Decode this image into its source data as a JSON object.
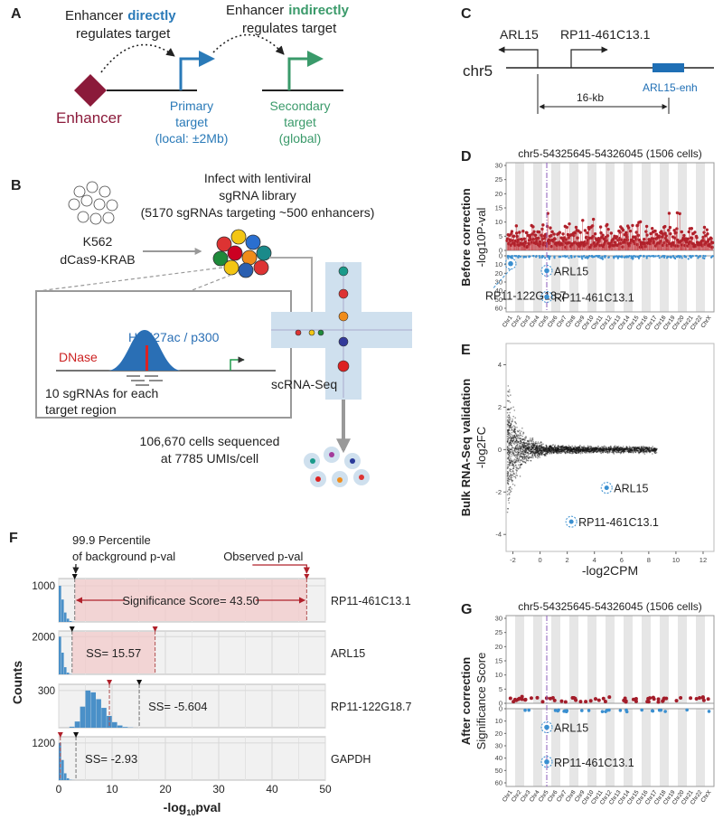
{
  "A": {
    "label": "A",
    "direct": [
      "Enhancer",
      "directly",
      "regulates target"
    ],
    "indirect": [
      "Enhancer",
      "indirectly",
      "regulates target"
    ],
    "enhancer": "Enhancer",
    "primary": [
      "Primary",
      "target",
      "(local: ±2Mb)"
    ],
    "secondary": [
      "Secondary",
      "target",
      "(global)"
    ]
  },
  "B": {
    "label": "B",
    "cell_line": [
      "K562",
      "dCas9-KRAB"
    ],
    "library": [
      "Infect with lentiviral",
      "sgRNA library",
      "(5170  sgRNAs targeting ~500 enhancers)"
    ],
    "dnase": "DNase",
    "marks": "H3K27ac / p300",
    "sgrnas": [
      "10 sgRNAs for each",
      "target region"
    ],
    "method": "scRNA-Seq",
    "result": [
      "106,670 cells sequenced",
      "at 7785 UMIs/cell"
    ]
  },
  "C": {
    "label": "C",
    "chrom": "chr5",
    "genes": [
      "ARL15",
      "RP11-461C13.1"
    ],
    "enhancer": "ARL15-enh",
    "distance": "16-kb"
  },
  "D": {
    "label": "D",
    "type": "manhattan",
    "title": "chr5-54325645-54326045 (1506 cells)",
    "ylabel": [
      "Before correction",
      "-log10P-val"
    ],
    "ylim_up": [
      0,
      30
    ],
    "yticks_up": [
      0,
      5,
      10,
      15,
      20,
      25,
      30
    ],
    "ylim_down": [
      0,
      60
    ],
    "yticks_down": [
      0,
      10,
      20,
      30,
      40,
      50,
      60
    ],
    "chromosomes": [
      "Chr1",
      "Chr2",
      "Chr3",
      "Chr4",
      "Chr5",
      "Chr6",
      "Chr7",
      "Chr8",
      "Chr9",
      "Chr10",
      "Chr11",
      "Chr12",
      "Chr13",
      "Chr14",
      "Chr15",
      "Chr16",
      "Chr17",
      "Chr18",
      "Chr19",
      "Chr20",
      "Chr21",
      "Chr22",
      "ChrX"
    ],
    "target_chromosome": "Chr5",
    "points": [
      {
        "name": "ARL15",
        "chromosome": "Chr5",
        "value": 17
      },
      {
        "name": "RP11-122G18.7",
        "chromosome": "Chr1",
        "value": 9
      },
      {
        "name": "RP11-461C13.1",
        "chromosome": "Chr5",
        "value": 47
      }
    ]
  },
  "E": {
    "label": "E",
    "type": "scatter",
    "xlabel": "-log2CPM",
    "ylabel": [
      "Bulk RNA-Seq validation",
      "-log2FC"
    ],
    "xlim": [
      -2.5,
      12.8
    ],
    "xticks": [
      -2,
      0,
      2,
      4,
      6,
      8,
      10,
      12
    ],
    "ylim": [
      -4.8,
      5
    ],
    "yticks": [
      -4,
      -2,
      0,
      2,
      4
    ],
    "points": [
      {
        "name": "ARL15",
        "x": 4.9,
        "y": -1.8
      },
      {
        "name": "RP11-461C13.1",
        "x": 2.3,
        "y": -3.4
      }
    ]
  },
  "F": {
    "label": "F",
    "type": "histogram",
    "ylabel": "Counts",
    "xlabel": [
      "-log",
      "10",
      "pval"
    ],
    "xlim": [
      0,
      50
    ],
    "xticks": [
      0,
      10,
      20,
      30,
      40,
      50
    ],
    "threshold_note": [
      "99.9 Percentile",
      "of background p-val"
    ],
    "observed_note": "Observed p-val",
    "rows": [
      {
        "gene": "RP11-461C13.1",
        "ylim": [
          0,
          1200
        ],
        "yticks": [
          1000
        ],
        "bins": [
          0,
          0.5,
          1,
          1.5,
          2,
          2.5,
          3
        ],
        "counts": [
          1000,
          620,
          260,
          90,
          25,
          6
        ],
        "threshold": 3,
        "observed": 46.5,
        "shaded": true,
        "ss_label": "Significance Score= 43.50"
      },
      {
        "gene": "ARL15",
        "ylim": [
          0,
          2300
        ],
        "yticks": [
          2000
        ],
        "bins": [
          0,
          0.5,
          1,
          1.5,
          2,
          2.5
        ],
        "counts": [
          2000,
          1150,
          380,
          90,
          15
        ],
        "threshold": 2.5,
        "observed": 18.07,
        "shaded": true,
        "ss_label": "SS= 15.57"
      },
      {
        "gene": "RP11-122G18.7",
        "ylim": [
          0,
          350
        ],
        "yticks": [
          300
        ],
        "bins": [
          2,
          3,
          4,
          5,
          6,
          7,
          8,
          9,
          10,
          11,
          12,
          13,
          14
        ],
        "counts": [
          8,
          50,
          170,
          300,
          285,
          230,
          160,
          95,
          45,
          18,
          6,
          2
        ],
        "threshold": 15.1,
        "observed": 9.5,
        "shaded": false,
        "ss_label": "SS= -5.604"
      },
      {
        "gene": "GAPDH",
        "ylim": [
          0,
          1400
        ],
        "yticks": [
          1200
        ],
        "bins": [
          0,
          0.5,
          1,
          1.5,
          2,
          2.5,
          3
        ],
        "counts": [
          1200,
          650,
          220,
          60,
          12,
          3
        ],
        "threshold": 3.23,
        "observed": 0.3,
        "shaded": false,
        "ss_label": "SS= -2.93"
      }
    ]
  },
  "G": {
    "label": "G",
    "type": "manhattan",
    "title": "chr5-54325645-54326045 (1506 cells)",
    "ylabel": [
      "After correction",
      "Significance Score"
    ],
    "ylim_up": [
      0,
      30
    ],
    "yticks_up": [
      0,
      5,
      10,
      15,
      20,
      25,
      30
    ],
    "ylim_down": [
      0,
      60
    ],
    "yticks_down": [
      0,
      10,
      20,
      30,
      40,
      50,
      60
    ],
    "chromosomes": [
      "Chr1",
      "Chr2",
      "Chr3",
      "Chr4",
      "Chr5",
      "Chr6",
      "Chr7",
      "Chr8",
      "Chr9",
      "Chr10",
      "Chr11",
      "Chr12",
      "Chr13",
      "Chr14",
      "Chr15",
      "Chr16",
      "Chr17",
      "Chr18",
      "Chr19",
      "Chr20",
      "Chr21",
      "Chr22",
      "ChrX"
    ],
    "target_chromosome": "Chr5",
    "points": [
      {
        "name": "ARL15",
        "chromosome": "Chr5",
        "value": 15
      },
      {
        "name": "RP11-461C13.1",
        "chromosome": "Chr5",
        "value": 43
      }
    ]
  }
}
